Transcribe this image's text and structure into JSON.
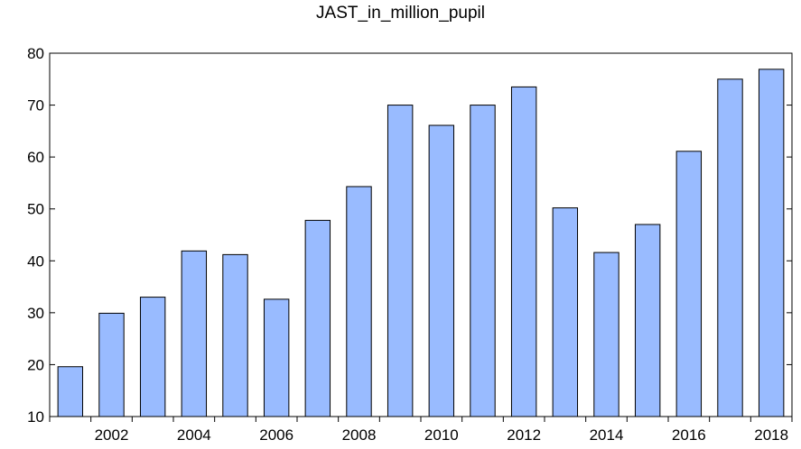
{
  "chart_data": {
    "type": "bar",
    "title": "JAST_in_million_pupil",
    "xlabel": "",
    "ylabel": "",
    "categories": [
      "2001",
      "2002",
      "2003",
      "2004",
      "2005",
      "2006",
      "2007",
      "2008",
      "2009",
      "2010",
      "2011",
      "2012",
      "2013",
      "2014",
      "2015",
      "2016",
      "2017",
      "2018"
    ],
    "values": [
      19.6,
      29.9,
      33.0,
      41.9,
      41.2,
      32.6,
      47.8,
      54.3,
      70.0,
      66.1,
      70.0,
      73.5,
      50.2,
      41.6,
      47.0,
      61.1,
      75.0,
      76.9
    ],
    "x_tick_labels": [
      "2002",
      "2004",
      "2006",
      "2008",
      "2010",
      "2012",
      "2014",
      "2016",
      "2018"
    ],
    "y_ticks": [
      10,
      20,
      30,
      40,
      50,
      60,
      70,
      80
    ],
    "ylim": [
      10,
      80
    ],
    "grid": false,
    "legend": "none",
    "bar_color": "#99BBFF",
    "bar_edge_color": "#000000"
  }
}
